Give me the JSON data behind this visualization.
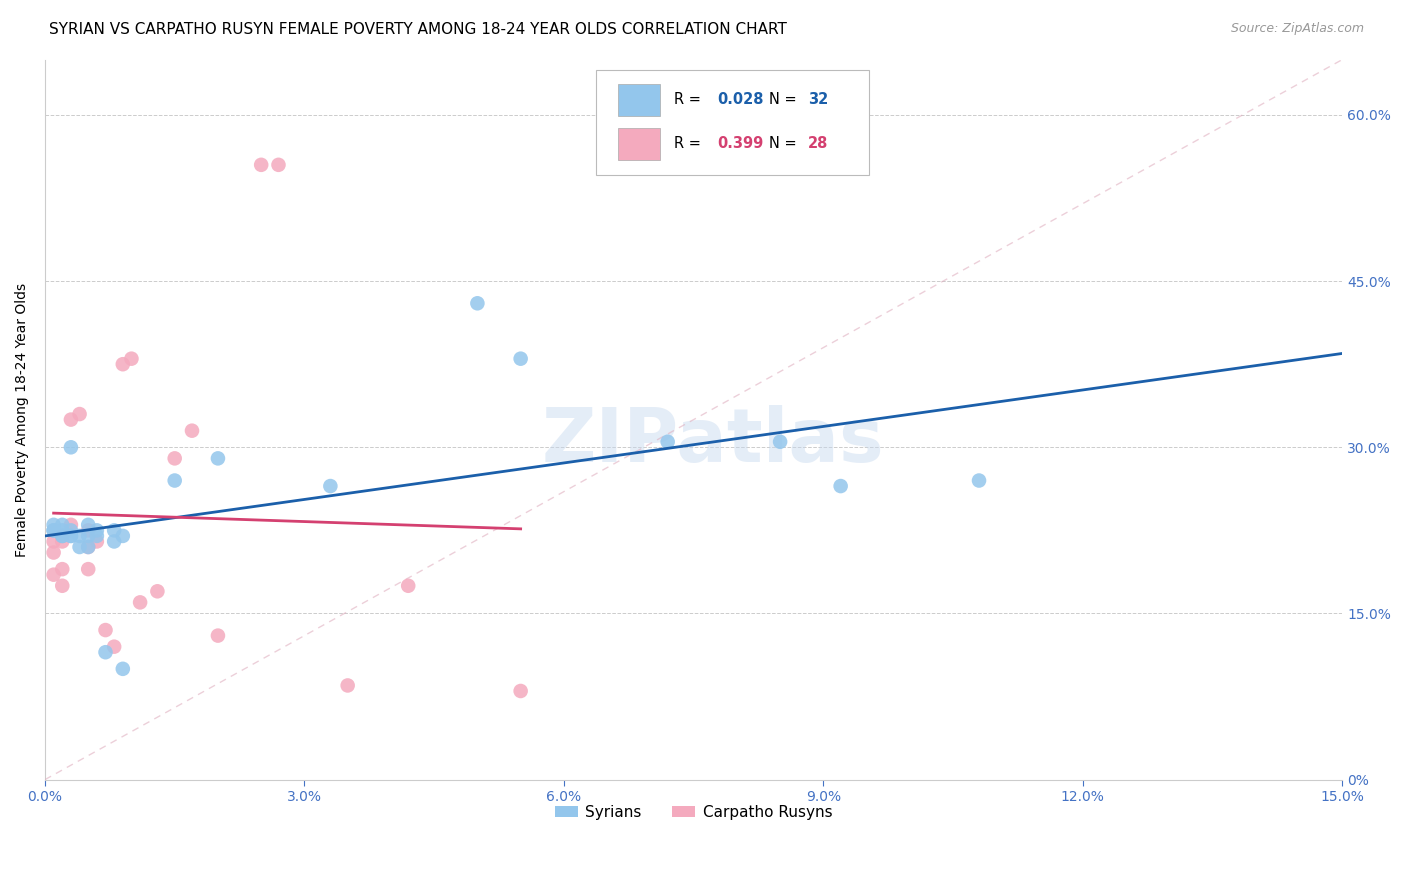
{
  "title": "SYRIAN VS CARPATHO RUSYN FEMALE POVERTY AMONG 18-24 YEAR OLDS CORRELATION CHART",
  "source": "Source: ZipAtlas.com",
  "ylabel": "Female Poverty Among 18-24 Year Olds",
  "xlim": [
    0.0,
    0.15
  ],
  "ylim": [
    0.0,
    0.65
  ],
  "xticks": [
    0.0,
    0.03,
    0.06,
    0.09,
    0.12,
    0.15
  ],
  "yticks": [
    0.0,
    0.15,
    0.3,
    0.45,
    0.6
  ],
  "xtick_labels": [
    "0.0%",
    "3.0%",
    "6.0%",
    "9.0%",
    "12.0%",
    "15.0%"
  ],
  "ytick_labels": [
    "0%",
    "15.0%",
    "30.0%",
    "45.0%",
    "60.0%"
  ],
  "watermark": "ZIPatlas",
  "blue_color": "#93C6EC",
  "pink_color": "#F4AABE",
  "blue_line_color": "#1B5FAA",
  "pink_line_color": "#D44070",
  "legend_blue_label": "Syrians",
  "legend_pink_label": "Carpatho Rusyns",
  "syrians_x": [
    0.001,
    0.001,
    0.001,
    0.002,
    0.002,
    0.002,
    0.002,
    0.003,
    0.003,
    0.003,
    0.003,
    0.004,
    0.004,
    0.005,
    0.005,
    0.005,
    0.006,
    0.006,
    0.007,
    0.008,
    0.008,
    0.009,
    0.009,
    0.015,
    0.02,
    0.033,
    0.05,
    0.055,
    0.072,
    0.085,
    0.092,
    0.108
  ],
  "syrians_y": [
    0.225,
    0.225,
    0.23,
    0.22,
    0.225,
    0.22,
    0.23,
    0.22,
    0.225,
    0.22,
    0.3,
    0.21,
    0.22,
    0.22,
    0.21,
    0.23,
    0.225,
    0.22,
    0.115,
    0.225,
    0.215,
    0.1,
    0.22,
    0.27,
    0.29,
    0.265,
    0.43,
    0.38,
    0.305,
    0.305,
    0.265,
    0.27
  ],
  "carpatho_x": [
    0.001,
    0.001,
    0.001,
    0.002,
    0.002,
    0.002,
    0.002,
    0.003,
    0.003,
    0.004,
    0.005,
    0.005,
    0.005,
    0.006,
    0.007,
    0.008,
    0.009,
    0.01,
    0.011,
    0.013,
    0.015,
    0.017,
    0.02,
    0.025,
    0.027,
    0.035,
    0.042,
    0.055
  ],
  "carpatho_y": [
    0.215,
    0.205,
    0.185,
    0.22,
    0.215,
    0.19,
    0.175,
    0.23,
    0.325,
    0.33,
    0.21,
    0.225,
    0.19,
    0.215,
    0.135,
    0.12,
    0.375,
    0.38,
    0.16,
    0.17,
    0.29,
    0.315,
    0.13,
    0.555,
    0.555,
    0.085,
    0.175,
    0.08
  ],
  "dot_size": 110,
  "background_color": "#FFFFFF",
  "grid_color": "#CCCCCC",
  "axis_color": "#4472C4",
  "title_fontsize": 11,
  "label_fontsize": 10,
  "tick_fontsize": 10
}
